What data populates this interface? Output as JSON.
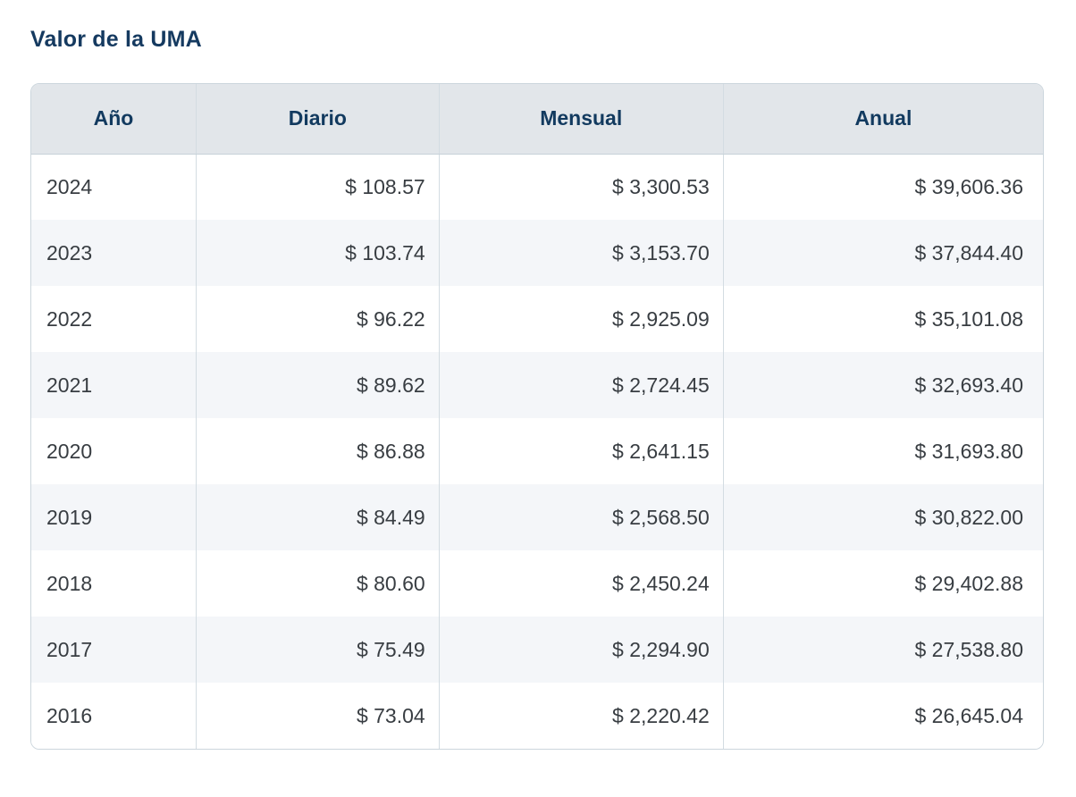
{
  "page": {
    "title": "Valor de la UMA"
  },
  "table": {
    "columns": [
      "Año",
      "Diario",
      "Mensual",
      "Anual"
    ],
    "rows": [
      [
        "2024",
        "$ 108.57",
        "$ 3,300.53",
        "$ 39,606.36"
      ],
      [
        "2023",
        "$ 103.74",
        "$ 3,153.70",
        "$ 37,844.40"
      ],
      [
        "2022",
        "$ 96.22",
        "$ 2,925.09",
        "$ 35,101.08"
      ],
      [
        "2021",
        "$ 89.62",
        "$ 2,724.45",
        "$ 32,693.40"
      ],
      [
        "2020",
        "$ 86.88",
        "$ 2,641.15",
        "$ 31,693.80"
      ],
      [
        "2019",
        "$ 84.49",
        "$ 2,568.50",
        "$ 30,822.00"
      ],
      [
        "2018",
        "$ 80.60",
        "$ 2,450.24",
        "$ 29,402.88"
      ],
      [
        "2017",
        "$ 75.49",
        "$ 2,294.90",
        "$ 27,538.80"
      ],
      [
        "2016",
        "$ 73.04",
        "$ 2,220.42",
        "$ 26,645.04"
      ]
    ]
  },
  "colors": {
    "title_text": "#153a60",
    "header_bg": "#e2e6ea",
    "header_text": "#123a5f",
    "cell_text": "#383d42",
    "stripe_bg": "#f4f6f9",
    "border": "#ccd6dd"
  },
  "chart_data": {
    "type": "table",
    "title": "Valor de la UMA",
    "columns": [
      "Año",
      "Diario",
      "Mensual",
      "Anual"
    ],
    "rows": [
      [
        2024,
        108.57,
        3300.53,
        39606.36
      ],
      [
        2023,
        103.74,
        3153.7,
        37844.4
      ],
      [
        2022,
        96.22,
        2925.09,
        35101.08
      ],
      [
        2021,
        89.62,
        2724.45,
        32693.4
      ],
      [
        2020,
        86.88,
        2641.15,
        31693.8
      ],
      [
        2019,
        84.49,
        2568.5,
        30822.0
      ],
      [
        2018,
        80.6,
        2450.24,
        29402.88
      ],
      [
        2017,
        75.49,
        2294.9,
        27538.8
      ],
      [
        2016,
        73.04,
        2220.42,
        26645.04
      ]
    ],
    "currency": "MXN",
    "notes": "Zebra-striped static table; header row shaded, values right-aligned"
  }
}
